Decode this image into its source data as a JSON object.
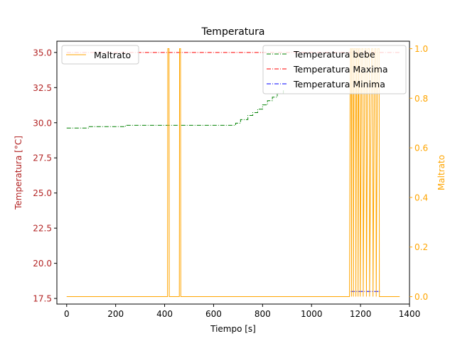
{
  "chart_data": {
    "type": "line",
    "title": "Temperatura",
    "xlabel": "Tiempo [s]",
    "ylabel_left": "Temperatura [°C]",
    "ylabel_right": "Maltrato",
    "xlim": [
      -40,
      1400
    ],
    "ylim_left": [
      17.1,
      35.8
    ],
    "ylim_right": [
      -0.03,
      1.03
    ],
    "x_ticks": [
      "0",
      "200",
      "400",
      "600",
      "800",
      "1000",
      "1200",
      "1400"
    ],
    "y_left_ticks": [
      "17.5",
      "20.0",
      "22.5",
      "25.0",
      "27.5",
      "30.0",
      "32.5",
      "35.0"
    ],
    "y_right_ticks": [
      "0.0",
      "0.2",
      "0.4",
      "0.6",
      "0.8",
      "1.0"
    ],
    "grid": false,
    "legend_left": {
      "placement": "top-left",
      "entries": [
        "Maltrato"
      ]
    },
    "legend_right": {
      "placement": "top-right",
      "entries": [
        "Temperatura bebe",
        "Temperatura Maxima",
        "Temperatura Minima"
      ]
    },
    "colors": {
      "left_axis": "#b22222",
      "right_axis": "#ffa500",
      "bebe": "#008000",
      "maxima": "#ff0000",
      "minima": "#0000ff",
      "maltrato": "#ffa500"
    },
    "series": [
      {
        "name": "Temperatura bebe",
        "axis": "left",
        "step": true,
        "points": [
          [
            0,
            29.62
          ],
          [
            90,
            29.62
          ],
          [
            90,
            29.72
          ],
          [
            240,
            29.72
          ],
          [
            240,
            29.82
          ],
          [
            690,
            29.82
          ],
          [
            690,
            29.97
          ],
          [
            710,
            29.97
          ],
          [
            710,
            30.22
          ],
          [
            740,
            30.22
          ],
          [
            740,
            30.52
          ],
          [
            760,
            30.52
          ],
          [
            760,
            30.72
          ],
          [
            780,
            30.72
          ],
          [
            780,
            30.97
          ],
          [
            800,
            30.97
          ],
          [
            800,
            31.27
          ],
          [
            820,
            31.27
          ],
          [
            820,
            31.57
          ],
          [
            840,
            31.57
          ],
          [
            840,
            31.82
          ],
          [
            860,
            31.82
          ],
          [
            860,
            32.07
          ],
          [
            885,
            32.07
          ],
          [
            885,
            32.32
          ]
        ]
      },
      {
        "name": "Temperatura Maxima",
        "axis": "left",
        "points": [
          [
            0,
            35.0
          ],
          [
            1360,
            35.0
          ]
        ]
      },
      {
        "name": "Temperatura Minima",
        "axis": "left",
        "points": [
          [
            1160,
            18.0
          ],
          [
            1280,
            18.0
          ]
        ]
      },
      {
        "name": "Maltrato",
        "axis": "right",
        "points": [
          [
            0,
            0
          ],
          [
            412,
            0
          ],
          [
            413,
            1
          ],
          [
            418,
            1
          ],
          [
            419,
            0
          ],
          [
            460,
            0
          ],
          [
            461,
            1
          ],
          [
            465,
            1
          ],
          [
            466,
            0
          ],
          [
            1155,
            0
          ],
          [
            1158,
            1
          ],
          [
            1162,
            1
          ],
          [
            1163,
            0
          ],
          [
            1165,
            1
          ],
          [
            1170,
            1
          ],
          [
            1171,
            0
          ],
          [
            1174,
            1
          ],
          [
            1180,
            1
          ],
          [
            1181,
            0
          ],
          [
            1184,
            1
          ],
          [
            1189,
            1
          ],
          [
            1190,
            0
          ],
          [
            1193,
            1
          ],
          [
            1198,
            1
          ],
          [
            1199,
            0
          ],
          [
            1205,
            1
          ],
          [
            1210,
            1
          ],
          [
            1211,
            0
          ],
          [
            1218,
            1
          ],
          [
            1223,
            1
          ],
          [
            1224,
            0
          ],
          [
            1230,
            1
          ],
          [
            1236,
            1
          ],
          [
            1237,
            0
          ],
          [
            1245,
            1
          ],
          [
            1250,
            1
          ],
          [
            1251,
            0
          ],
          [
            1258,
            1
          ],
          [
            1263,
            1
          ],
          [
            1264,
            0
          ],
          [
            1270,
            1
          ],
          [
            1276,
            1
          ],
          [
            1277,
            0
          ],
          [
            1360,
            0
          ]
        ]
      }
    ]
  }
}
